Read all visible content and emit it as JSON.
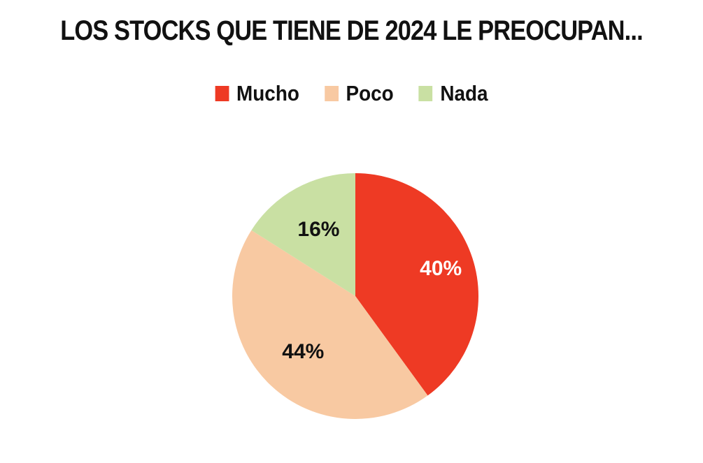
{
  "chart_data": {
    "type": "pie",
    "title": "LOS STOCKS QUE TIENE DE 2024 LE PREOCUPAN...",
    "legend_position": "top",
    "slices": [
      {
        "name": "Mucho",
        "value": 40,
        "label": "40%",
        "color": "#ee3a24",
        "label_color": "#ffffff"
      },
      {
        "name": "Poco",
        "value": 44,
        "label": "44%",
        "color": "#f8c9a2",
        "label_color": "#111111"
      },
      {
        "name": "Nada",
        "value": 16,
        "label": "16%",
        "color": "#c9e0a3",
        "label_color": "#111111"
      }
    ]
  }
}
